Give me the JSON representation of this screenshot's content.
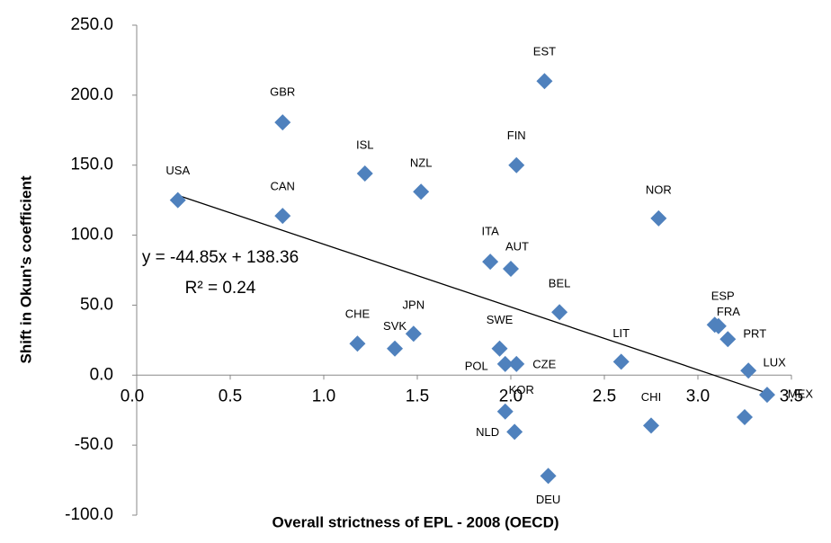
{
  "chart_data": {
    "type": "scatter",
    "x_label": "Overall strictness of EPL - 2008 (OECD)",
    "y_label": "Shift in Okun's coefficient",
    "labels": [
      "USA",
      "GBR",
      "CAN",
      "ISL",
      "NZL",
      "EST",
      "FIN",
      "NOR",
      "ITA",
      "AUT",
      "BEL",
      "CHE",
      "SVK",
      "JPN",
      "SWE",
      "POL",
      "CZE",
      "LIT",
      "ESP",
      "FRA",
      "PRT",
      "LUX",
      "MEX",
      "KOR",
      "NLD",
      "DEU",
      "CHI",
      null
    ],
    "x": [
      0.22,
      0.78,
      0.78,
      1.22,
      1.52,
      2.18,
      2.03,
      2.79,
      1.89,
      2.0,
      2.26,
      1.18,
      1.38,
      1.48,
      1.94,
      1.97,
      2.03,
      2.59,
      3.09,
      3.11,
      3.16,
      3.27,
      3.37,
      1.97,
      2.02,
      2.2,
      2.75,
      3.25
    ],
    "y": [
      125,
      180.6,
      113.8,
      144,
      131,
      210,
      150,
      112,
      81,
      76,
      45,
      22.5,
      19,
      29.6,
      19,
      8,
      8,
      9.6,
      36,
      35,
      25.7,
      3.2,
      -14,
      -26,
      -40.5,
      -72,
      -36,
      -30
    ],
    "color": "#4f81bd",
    "xlim": [
      0,
      3.5
    ],
    "xticks": [
      {
        "value": 0,
        "label": "0.0"
      },
      {
        "value": 0.5,
        "label": "0.5"
      },
      {
        "value": 1,
        "label": "1.0"
      },
      {
        "value": 1.5,
        "label": "1.5"
      },
      {
        "value": 2,
        "label": "2.0"
      },
      {
        "value": 2.5,
        "label": "2.5"
      },
      {
        "value": 3,
        "label": "3.0"
      },
      {
        "value": 3.5,
        "label": "3.5"
      }
    ],
    "ylim": [
      -100,
      250
    ],
    "yticks": [
      {
        "value": -100,
        "label": "-100.0"
      },
      {
        "value": -50,
        "label": "-50.0"
      },
      {
        "value": 0,
        "label": "0.0"
      },
      {
        "value": 50,
        "label": "50.0"
      },
      {
        "value": 100,
        "label": "100.0"
      },
      {
        "value": 150,
        "label": "150.0"
      },
      {
        "value": 200,
        "label": "200.0"
      },
      {
        "value": 250,
        "label": "250.0"
      }
    ],
    "grid": false,
    "trendline": {
      "slope": -44.85,
      "intercept": 138.36,
      "x_range": [
        0.22,
        3.37
      ],
      "equation": "y = -44.85x + 138.36",
      "r2_label": "R² = 0.24"
    }
  }
}
